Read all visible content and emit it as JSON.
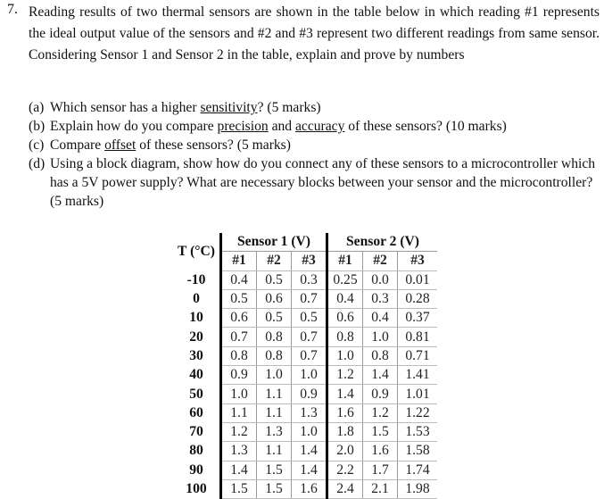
{
  "question": {
    "number": "7.",
    "intro": "Reading results of two thermal sensors are shown in the table below in which reading #1 represents the ideal output value of the sensors and #2 and #3 represent two different readings from same sensor. Considering Sensor 1 and Sensor 2 in the table, explain and prove by numbers",
    "parts": [
      {
        "label": "(a)",
        "pre": "Which sensor has a higher ",
        "u1": "sensitivity",
        "mid": "? (5 marks)",
        "u2": "",
        "post": ""
      },
      {
        "label": "(b)",
        "pre": "Explain how do you compare ",
        "u1": "precision",
        "mid": " and ",
        "u2": "accuracy",
        "post": " of these sensors? (10 marks)"
      },
      {
        "label": "(c)",
        "pre": "Compare ",
        "u1": "offset",
        "mid": " of these sensors? (5 marks)",
        "u2": "",
        "post": ""
      },
      {
        "label": "(d)",
        "pre": "Using a block diagram, show how do you connect any of these sensors to a microcontroller which has a 5V power supply? What are necessary blocks between your sensor and the microcontroller?     (5 marks)",
        "u1": "",
        "mid": "",
        "u2": "",
        "post": ""
      }
    ]
  },
  "table": {
    "t_header": "T (°C)",
    "groups": [
      "Sensor 1 (V)",
      "Sensor 2 (V)"
    ],
    "subheaders": [
      "#1",
      "#2",
      "#3",
      "#1",
      "#2",
      "#3"
    ],
    "rows": [
      [
        "-10",
        "0.4",
        "0.5",
        "0.3",
        "0.25",
        "0.0",
        "0.01"
      ],
      [
        "0",
        "0.5",
        "0.6",
        "0.7",
        "0.4",
        "0.3",
        "0.28"
      ],
      [
        "10",
        "0.6",
        "0.5",
        "0.5",
        "0.6",
        "0.4",
        "0.37"
      ],
      [
        "20",
        "0.7",
        "0.8",
        "0.7",
        "0.8",
        "1.0",
        "0.81"
      ],
      [
        "30",
        "0.8",
        "0.8",
        "0.7",
        "1.0",
        "0.8",
        "0.71"
      ],
      [
        "40",
        "0.9",
        "1.0",
        "1.0",
        "1.2",
        "1.4",
        "1.41"
      ],
      [
        "50",
        "1.0",
        "1.1",
        "0.9",
        "1.4",
        "0.9",
        "1.01"
      ],
      [
        "60",
        "1.1",
        "1.1",
        "1.3",
        "1.6",
        "1.2",
        "1.22"
      ],
      [
        "70",
        "1.2",
        "1.3",
        "1.0",
        "1.8",
        "1.5",
        "1.53"
      ],
      [
        "80",
        "1.3",
        "1.1",
        "1.4",
        "2.0",
        "1.6",
        "1.58"
      ],
      [
        "90",
        "1.4",
        "1.5",
        "1.4",
        "2.2",
        "1.7",
        "1.74"
      ],
      [
        "100",
        "1.5",
        "1.5",
        "1.6",
        "2.4",
        "2.1",
        "1.98"
      ]
    ]
  }
}
